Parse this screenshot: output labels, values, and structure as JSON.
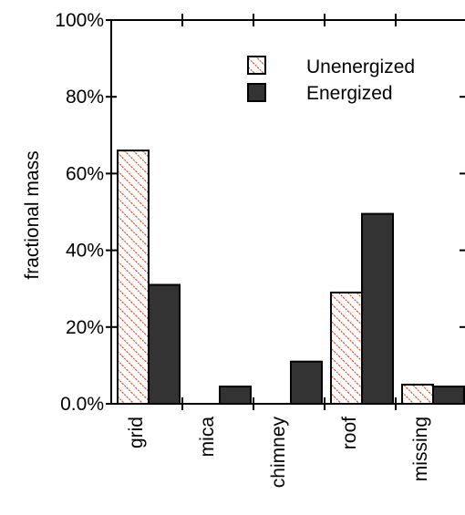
{
  "chart_data": {
    "type": "bar",
    "categories": [
      "grid",
      "mica",
      "chimney",
      "roof",
      "missing"
    ],
    "series": [
      {
        "name": "Unenergized",
        "values": [
          66,
          0,
          0,
          29,
          5
        ]
      },
      {
        "name": "Energized",
        "values": [
          31,
          4.5,
          11,
          49.5,
          4.5
        ]
      }
    ],
    "ylabel": "fractional mass",
    "ylim": [
      0,
      100
    ],
    "yticks": [
      0,
      20,
      40,
      60,
      80,
      100
    ],
    "ytick_labels": [
      "0.0%",
      "20%",
      "40%",
      "60%",
      "80%",
      "100%"
    ],
    "legend_position": "top-right",
    "grid": false,
    "colors": {
      "unenergized_text": "#d8401c",
      "unenergized_hatch": "#d8401c",
      "energized_fill": "#333333",
      "axis": "#000000"
    }
  }
}
